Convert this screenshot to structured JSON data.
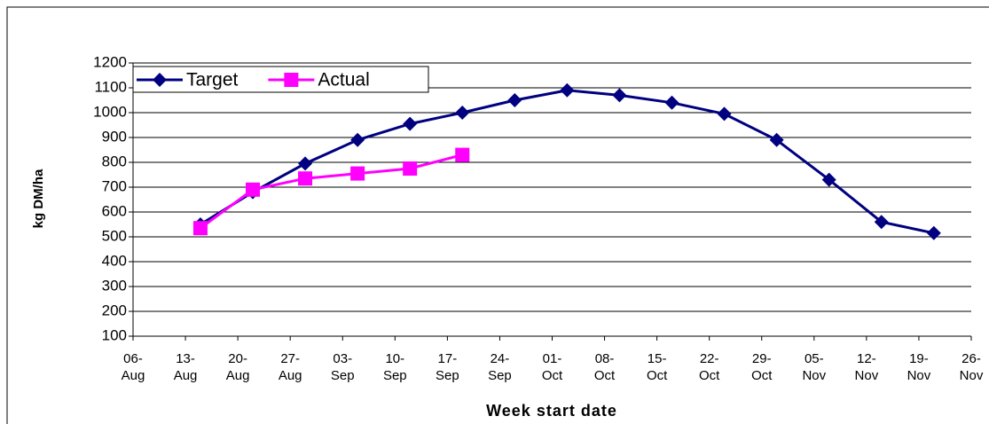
{
  "chart_data": {
    "type": "line",
    "y_label": "kg DM/ha",
    "x_label": "Week start date",
    "x": [
      "15-Aug",
      "22-Aug",
      "29-Aug",
      "05-Sep",
      "12-Sep",
      "19-Sep",
      "26-Sep",
      "03-Oct",
      "10-Oct",
      "17-Oct",
      "24-Oct",
      "31-Oct",
      "07-Nov",
      "14-Nov",
      "21-Nov"
    ],
    "series": [
      {
        "name": "Target",
        "color": "#000080",
        "marker": "diamond",
        "values": [
          550,
          680,
          795,
          890,
          955,
          1000,
          1050,
          1090,
          1070,
          1040,
          995,
          890,
          730,
          560,
          515
        ]
      },
      {
        "name": "Actual",
        "color": "#ff00ff",
        "marker": "square",
        "values": [
          535,
          690,
          735,
          755,
          775,
          830,
          null,
          null,
          null,
          null,
          null,
          null,
          null,
          null,
          null
        ]
      }
    ],
    "ylim": [
      100,
      1200
    ],
    "yticks": [
      100,
      200,
      300,
      400,
      500,
      600,
      700,
      800,
      900,
      1000,
      1100,
      1200
    ],
    "xlim": [
      "06-Aug",
      "26-Nov"
    ],
    "xticks": [
      "06-Aug",
      "13-Aug",
      "20-Aug",
      "27-Aug",
      "03-Sep",
      "10-Sep",
      "17-Sep",
      "24-Sep",
      "01-Oct",
      "08-Oct",
      "15-Oct",
      "22-Oct",
      "29-Oct",
      "05-Nov",
      "12-Nov",
      "19-Nov",
      "26-Nov"
    ],
    "grid": true,
    "legend": "top-left"
  }
}
